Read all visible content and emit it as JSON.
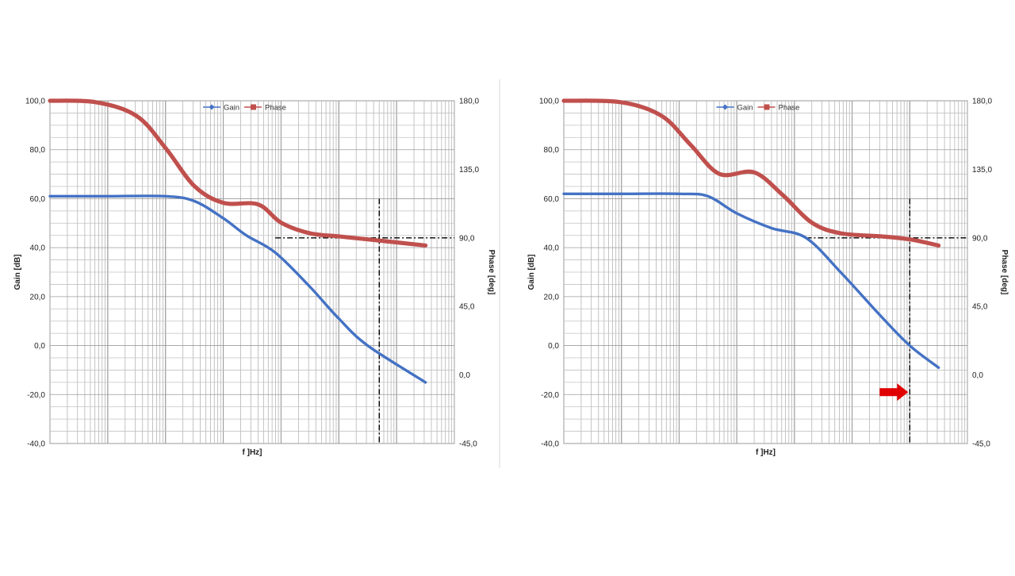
{
  "chart_data": [
    {
      "type": "line",
      "xlabel": "f ]Hz]",
      "ylabel": "Gain [dB]",
      "y2label": "Phase [deg]",
      "ylim": [
        -40,
        100
      ],
      "y2lim": [
        -45,
        180
      ],
      "y_ticks": [
        "100,0",
        "80,0",
        "60,0",
        "40,0",
        "20,0",
        "0,0",
        "-20,0",
        "-40,0"
      ],
      "y2_ticks": [
        "180,0",
        "135,0",
        "90,0",
        "45,0",
        "0,0",
        "-45,0"
      ],
      "x_scale": "log",
      "x_decades": 7,
      "grid": true,
      "legend": {
        "position": "top-center",
        "entries": [
          "Gain",
          "Phase"
        ]
      },
      "colors": {
        "gain": "#4472c4",
        "phase": "#c0504d",
        "marker_line": "#000000"
      },
      "series": [
        {
          "name": "Gain",
          "axis": "left",
          "x": [
            0,
            1,
            2,
            2.5,
            3,
            3.4,
            3.9,
            4.5,
            5,
            5.5,
            6.5
          ],
          "values": [
            61,
            61,
            61,
            59,
            52,
            45,
            38,
            24,
            11,
            0,
            -15
          ]
        },
        {
          "name": "Phase",
          "axis": "right",
          "x": [
            0,
            0.8,
            1.5,
            2,
            2.5,
            3,
            3.6,
            4,
            4.5,
            5,
            5.5,
            6.5
          ],
          "values": [
            180,
            179,
            170,
            149,
            124,
            113,
            112,
            100,
            93,
            91,
            89,
            85
          ]
        }
      ],
      "reference_lines": {
        "phase_horizontal": 90,
        "crossover_x": 5.7,
        "horizontal_x_start": 3.9
      }
    },
    {
      "type": "line",
      "xlabel": "f ]Hz]",
      "ylabel": "Gain [dB]",
      "y2label": "Phase [deg]",
      "ylim": [
        -40,
        100
      ],
      "y2lim": [
        -45,
        180
      ],
      "y_ticks": [
        "100,0",
        "80,0",
        "60,0",
        "40,0",
        "20,0",
        "0,0",
        "-20,0",
        "-40,0"
      ],
      "y2_ticks": [
        "180,0",
        "135,0",
        "90,0",
        "45,0",
        "0,0",
        "-45,0"
      ],
      "x_scale": "log",
      "x_decades": 7,
      "grid": true,
      "legend": {
        "position": "top-center",
        "entries": [
          "Gain",
          "Phase"
        ]
      },
      "colors": {
        "gain": "#4472c4",
        "phase": "#c0504d",
        "marker_line": "#000000",
        "arrow": "#e00000"
      },
      "series": [
        {
          "name": "Gain",
          "axis": "left",
          "x": [
            0,
            1,
            2,
            2.5,
            3,
            3.6,
            4.2,
            4.8,
            5.5,
            6,
            6.5
          ],
          "values": [
            62,
            62,
            62,
            61,
            54,
            48,
            44,
            30,
            12,
            0,
            -9
          ]
        },
        {
          "name": "Phase",
          "axis": "right",
          "x": [
            0,
            1,
            1.7,
            2.2,
            2.7,
            3.3,
            3.8,
            4.3,
            4.8,
            5.5,
            6,
            6.5
          ],
          "values": [
            180,
            179,
            170,
            151,
            132,
            133,
            118,
            100,
            93,
            91,
            89,
            85
          ]
        }
      ],
      "reference_lines": {
        "phase_horizontal": 90,
        "crossover_x": 6.0,
        "horizontal_x_start": 4.2
      },
      "annotation": {
        "type": "arrow",
        "points_to_x": 6.0,
        "y_value": -19
      }
    }
  ]
}
